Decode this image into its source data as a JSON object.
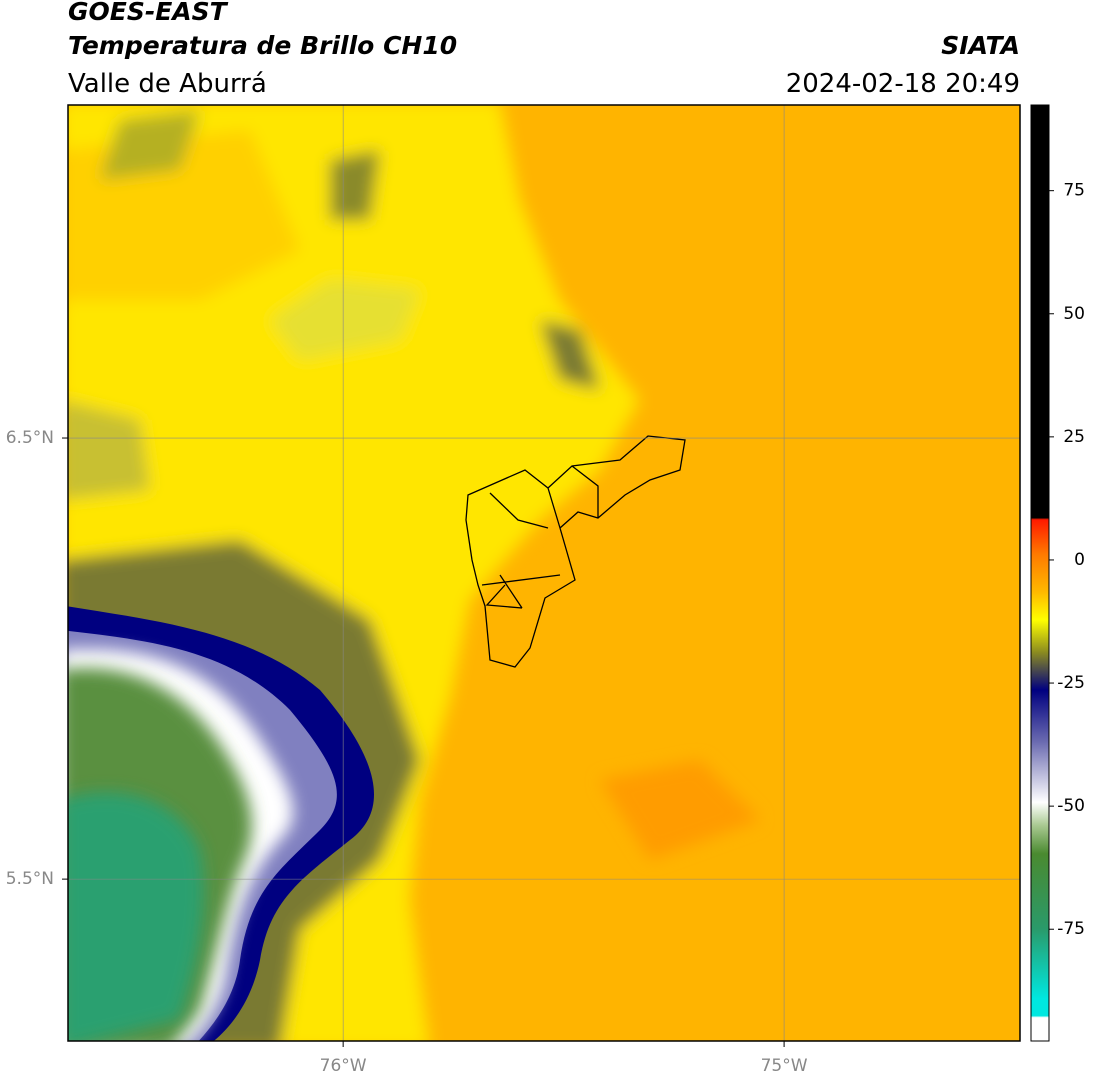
{
  "header": {
    "title": "GOES-EAST",
    "subtitle": "Temperatura de Brillo CH10",
    "source": "SIATA",
    "region": "Valle de Aburrá",
    "datetime": "2024-02-18 20:49"
  },
  "map": {
    "xlim": [
      -76.624,
      -74.465
    ],
    "ylim": [
      5.133,
      7.255
    ],
    "xticks": [
      {
        "value": -76,
        "label": "76°W"
      },
      {
        "value": -75,
        "label": "75°W"
      }
    ],
    "yticks": [
      {
        "value": 6.5,
        "label": "6.5°N"
      },
      {
        "value": 5.5,
        "label": "5.5°N"
      }
    ],
    "grid": true
  },
  "colorbar": {
    "lim": [
      -97.7,
      92.4
    ],
    "ticks": [
      -75,
      -50,
      -25,
      0,
      25,
      50,
      75
    ]
  }
}
